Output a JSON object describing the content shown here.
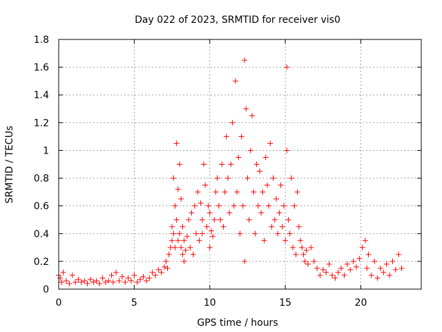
{
  "chart_data": {
    "type": "scatter",
    "title": "Day 022 of 2023, SRMTID for receiver vis0",
    "xlabel": "GPS time / hours",
    "ylabel": "SRMTID / TECUs",
    "xlim": [
      0,
      24
    ],
    "ylim": [
      0,
      1.8
    ],
    "x_ticks": [
      0,
      5,
      10,
      15,
      20
    ],
    "x_tick_labels": [
      "0",
      "5",
      "10",
      "15",
      "20"
    ],
    "y_ticks": [
      0,
      0.2,
      0.4,
      0.6,
      0.8,
      1,
      1.2,
      1.4,
      1.6,
      1.8
    ],
    "y_tick_labels": [
      "0",
      "0.2",
      "0.4",
      "0.6",
      "0.8",
      "1",
      "1.2",
      "1.4",
      "1.6",
      "1.8"
    ],
    "grid": true,
    "marker": "+",
    "marker_color": "#ff0000",
    "series": [
      {
        "name": "vis0",
        "x": [
          0.0,
          0.1,
          0.2,
          0.3,
          0.5,
          0.7,
          0.9,
          1.1,
          1.3,
          1.5,
          1.7,
          1.9,
          2.1,
          2.3,
          2.5,
          2.7,
          2.9,
          3.1,
          3.3,
          3.5,
          3.6,
          3.8,
          4.0,
          4.2,
          4.4,
          4.6,
          4.8,
          5.0,
          5.2,
          5.4,
          5.6,
          5.8,
          6.0,
          6.2,
          6.4,
          6.6,
          6.8,
          7.0,
          7.1,
          7.2,
          7.3,
          7.4,
          7.5,
          7.5,
          7.6,
          7.6,
          7.7,
          7.7,
          7.8,
          7.8,
          7.9,
          7.9,
          8.0,
          8.0,
          8.1,
          8.1,
          8.2,
          8.2,
          8.3,
          8.3,
          8.4,
          8.5,
          8.6,
          8.7,
          8.8,
          8.9,
          9.0,
          9.1,
          9.2,
          9.3,
          9.4,
          9.5,
          9.5,
          9.6,
          9.7,
          9.8,
          9.9,
          10.0,
          10.0,
          10.1,
          10.2,
          10.3,
          10.4,
          10.5,
          10.6,
          10.7,
          10.8,
          10.9,
          11.0,
          11.1,
          11.2,
          11.3,
          11.4,
          11.5,
          11.6,
          11.7,
          11.8,
          11.9,
          12.0,
          12.1,
          12.2,
          12.3,
          12.3,
          12.4,
          12.5,
          12.6,
          12.7,
          12.8,
          12.9,
          13.0,
          13.1,
          13.2,
          13.3,
          13.4,
          13.5,
          13.6,
          13.7,
          13.8,
          13.9,
          14.0,
          14.1,
          14.2,
          14.3,
          14.4,
          14.5,
          14.6,
          14.7,
          14.8,
          14.9,
          15.0,
          15.1,
          15.1,
          15.2,
          15.3,
          15.4,
          15.5,
          15.6,
          15.7,
          15.8,
          15.9,
          16.0,
          16.1,
          16.2,
          16.3,
          16.4,
          16.5,
          16.7,
          16.9,
          17.1,
          17.3,
          17.5,
          17.7,
          17.9,
          18.1,
          18.3,
          18.5,
          18.7,
          18.9,
          19.1,
          19.3,
          19.5,
          19.7,
          19.9,
          20.1,
          20.3,
          20.4,
          20.5,
          20.7,
          20.9,
          21.1,
          21.3,
          21.5,
          21.7,
          21.9,
          22.1,
          22.3,
          22.5,
          22.7
        ],
        "y": [
          0.1,
          0.08,
          0.05,
          0.12,
          0.06,
          0.04,
          0.1,
          0.05,
          0.07,
          0.05,
          0.06,
          0.04,
          0.07,
          0.05,
          0.06,
          0.04,
          0.08,
          0.05,
          0.06,
          0.1,
          0.05,
          0.12,
          0.06,
          0.09,
          0.05,
          0.08,
          0.06,
          0.1,
          0.05,
          0.07,
          0.09,
          0.06,
          0.08,
          0.12,
          0.1,
          0.14,
          0.12,
          0.16,
          0.2,
          0.15,
          0.25,
          0.3,
          0.45,
          0.35,
          0.8,
          0.4,
          0.6,
          0.3,
          1.05,
          0.5,
          0.72,
          0.35,
          0.9,
          0.4,
          0.65,
          0.3,
          0.45,
          0.25,
          0.35,
          0.2,
          0.28,
          0.38,
          0.5,
          0.3,
          0.55,
          0.25,
          0.6,
          0.4,
          0.7,
          0.35,
          0.62,
          0.4,
          0.5,
          0.9,
          0.75,
          0.45,
          0.6,
          0.3,
          0.55,
          0.42,
          0.38,
          0.5,
          0.7,
          0.8,
          0.6,
          0.5,
          0.9,
          0.45,
          0.7,
          1.1,
          0.8,
          0.55,
          0.9,
          1.2,
          0.6,
          1.5,
          0.7,
          0.95,
          0.4,
          1.1,
          0.6,
          1.65,
          0.2,
          1.3,
          0.8,
          0.5,
          1.0,
          1.25,
          0.7,
          0.4,
          0.9,
          0.6,
          0.85,
          0.55,
          0.7,
          0.35,
          0.95,
          0.75,
          0.6,
          1.05,
          0.45,
          0.8,
          0.5,
          0.65,
          0.4,
          0.55,
          0.75,
          0.45,
          0.6,
          0.35,
          1.0,
          1.6,
          0.5,
          0.4,
          0.8,
          0.3,
          0.6,
          0.25,
          0.7,
          0.45,
          0.35,
          0.3,
          0.25,
          0.2,
          0.28,
          0.18,
          0.3,
          0.2,
          0.15,
          0.1,
          0.14,
          0.12,
          0.18,
          0.1,
          0.08,
          0.12,
          0.15,
          0.1,
          0.18,
          0.14,
          0.2,
          0.16,
          0.22,
          0.3,
          0.35,
          0.15,
          0.25,
          0.1,
          0.2,
          0.08,
          0.15,
          0.12,
          0.18,
          0.1,
          0.2,
          0.14,
          0.25,
          0.15
        ]
      }
    ]
  }
}
